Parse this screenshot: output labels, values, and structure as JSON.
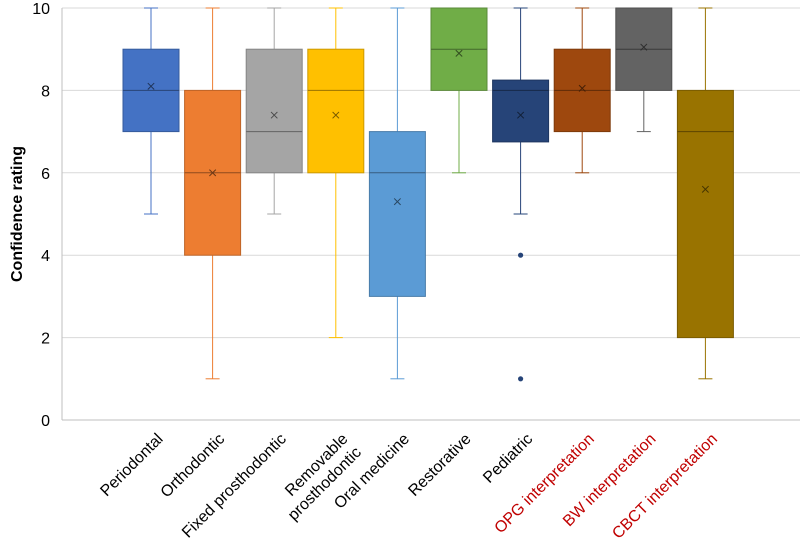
{
  "chart_data": {
    "type": "box",
    "title": "",
    "xlabel": "",
    "ylabel": "Confidence rating",
    "ylim": [
      0,
      10
    ],
    "yticks": [
      0,
      2,
      4,
      6,
      8,
      10
    ],
    "grid": true,
    "legend": "none",
    "categories": [
      {
        "label": "Periodontal",
        "lines": [
          "Periodontal"
        ],
        "label_color": "#000000",
        "color": "#4472C4",
        "min": 5,
        "q1": 7,
        "median": 8,
        "q3": 9,
        "max": 10,
        "mean": 8.1,
        "outliers": []
      },
      {
        "label": "Orthodontic",
        "lines": [
          "Orthodontic"
        ],
        "label_color": "#000000",
        "color": "#ED7D31",
        "min": 1,
        "q1": 4,
        "median": 6,
        "q3": 8,
        "max": 10,
        "mean": 6.0,
        "outliers": []
      },
      {
        "label": "Fixed prosthodontic",
        "lines": [
          "Fixed prosthodontic"
        ],
        "label_color": "#000000",
        "color": "#A5A5A5",
        "min": 5,
        "q1": 6,
        "median": 7,
        "q3": 9,
        "max": 10,
        "mean": 7.4,
        "outliers": []
      },
      {
        "label": "Removable prosthodontic",
        "lines": [
          "Removable",
          "prosthodontic"
        ],
        "label_color": "#000000",
        "color": "#FFC000",
        "min": 2,
        "q1": 6,
        "median": 8,
        "q3": 9,
        "max": 10,
        "mean": 7.4,
        "outliers": []
      },
      {
        "label": "Oral medicine",
        "lines": [
          "Oral medicine"
        ],
        "label_color": "#000000",
        "color": "#5B9BD5",
        "min": 1,
        "q1": 3,
        "median": 6,
        "q3": 7,
        "max": 10,
        "mean": 5.3,
        "outliers": []
      },
      {
        "label": "Restorative",
        "lines": [
          "Restorative"
        ],
        "label_color": "#000000",
        "color": "#70AD47",
        "min": 6,
        "q1": 8,
        "median": 9,
        "q3": 10,
        "max": 10,
        "mean": 8.9,
        "outliers": []
      },
      {
        "label": "Pediatric",
        "lines": [
          "Pediatric"
        ],
        "label_color": "#000000",
        "color": "#264478",
        "min": 5,
        "q1": 6.75,
        "median": 8,
        "q3": 8.25,
        "max": 10,
        "mean": 7.4,
        "outliers": [
          4,
          1
        ]
      },
      {
        "label": "OPG interpretation",
        "lines": [
          "OPG interpretation"
        ],
        "label_color": "#C00000",
        "color": "#9E480E",
        "min": 6,
        "q1": 7,
        "median": 8,
        "q3": 9,
        "max": 10,
        "mean": 8.05,
        "outliers": []
      },
      {
        "label": "BW interpretation",
        "lines": [
          "BW interpretation"
        ],
        "label_color": "#C00000",
        "color": "#636363",
        "min": 7,
        "q1": 8,
        "median": 9,
        "q3": 10,
        "max": 10,
        "mean": 9.05,
        "outliers": []
      },
      {
        "label": "CBCT interpretation",
        "lines": [
          "CBCT interpretation"
        ],
        "label_color": "#C00000",
        "color": "#997300",
        "min": 1,
        "q1": 2,
        "median": 7,
        "q3": 8,
        "max": 10,
        "mean": 5.6,
        "outliers": []
      }
    ]
  }
}
